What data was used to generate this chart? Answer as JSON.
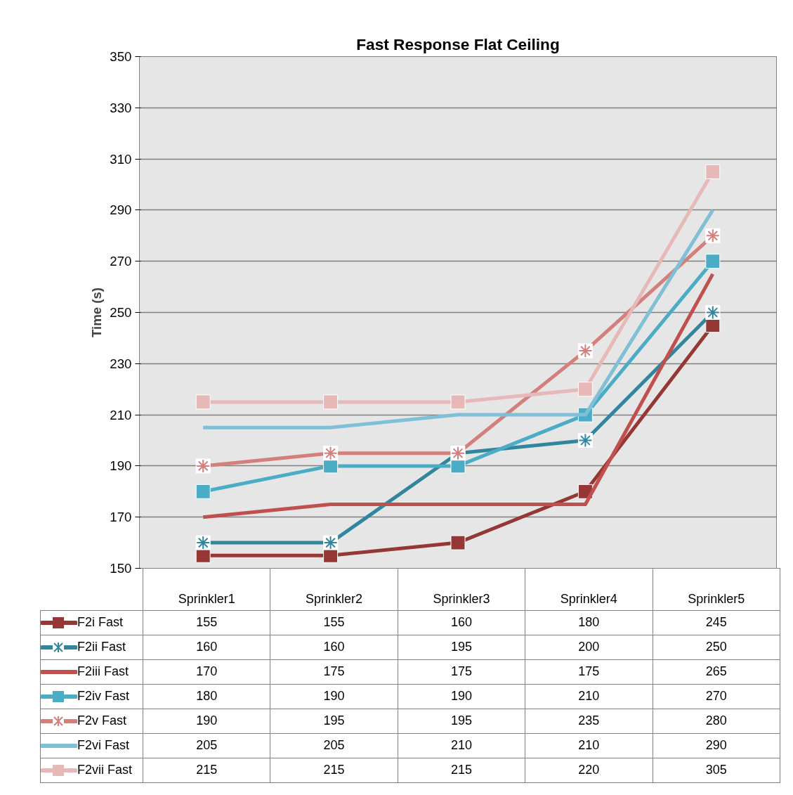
{
  "chart_data": {
    "type": "line",
    "title": "Fast Response Flat Ceiling",
    "ylabel": "Time (s)",
    "categories": [
      "Sprinkler1",
      "Sprinkler2",
      "Sprinkler3",
      "Sprinkler4",
      "Sprinkler5"
    ],
    "ylim": [
      150,
      350
    ],
    "yticks": [
      150,
      170,
      190,
      210,
      230,
      250,
      270,
      290,
      310,
      330,
      350
    ],
    "grid": "y",
    "legend": "bottom",
    "data_labels": true,
    "line_style": "solid",
    "series": [
      {
        "name": "F2i Fast",
        "color": "#953735",
        "marker": "square",
        "values": [
          155,
          155,
          160,
          180,
          245
        ]
      },
      {
        "name": "F2ii Fast",
        "color": "#31859c",
        "marker": "cross",
        "values": [
          160,
          160,
          195,
          200,
          250
        ]
      },
      {
        "name": "F2iii Fast",
        "color": "#c0504d",
        "marker": "none",
        "values": [
          170,
          175,
          175,
          175,
          265
        ]
      },
      {
        "name": "F2iv Fast",
        "color": "#4bacc6",
        "marker": "square",
        "values": [
          180,
          190,
          190,
          210,
          270
        ]
      },
      {
        "name": "F2v Fast",
        "color": "#d37f7c",
        "marker": "cross",
        "values": [
          190,
          195,
          195,
          235,
          280
        ]
      },
      {
        "name": "F2vi Fast",
        "color": "#7fc0d6",
        "marker": "none",
        "values": [
          205,
          205,
          210,
          210,
          290
        ]
      },
      {
        "name": "F2vii Fast",
        "color": "#e6b9b8",
        "marker": "square",
        "values": [
          215,
          215,
          215,
          220,
          305
        ]
      }
    ]
  }
}
